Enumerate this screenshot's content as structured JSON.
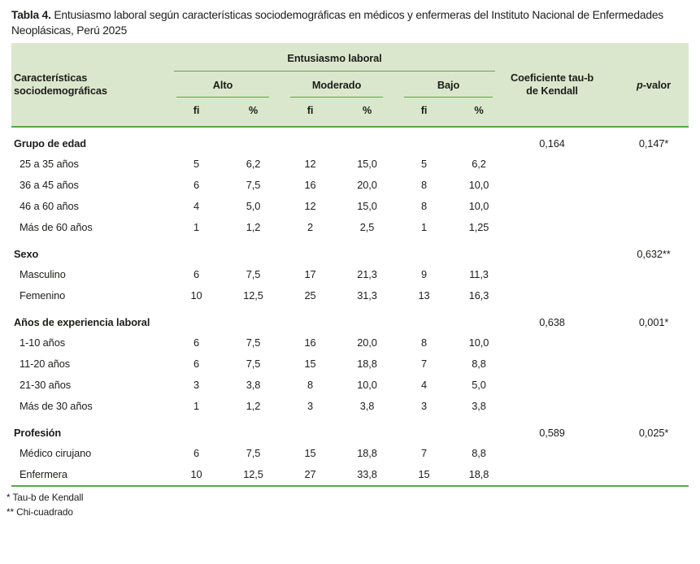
{
  "title": {
    "label": "Tabla 4.",
    "text": "Entusiasmo laboral según características sociodemográficas en médicos y enfermeras del Instituto Nacional de Enfermedades Neoplásicas, Perú 2025"
  },
  "header": {
    "characteristics": "Características sociodemográficas",
    "group": "Entusiasmo laboral",
    "subgroups": [
      "Alto",
      "Moderado",
      "Bajo"
    ],
    "fi_label": "fi",
    "pct_label": "%",
    "taub": "Coeficiente tau-b de Kendall",
    "p_italic": "p",
    "p_rest": "-valor"
  },
  "sections": [
    {
      "name": "Grupo de edad",
      "taub": "0,164",
      "pvalor": "0,147*",
      "rows": [
        {
          "label": "25 a 35 años",
          "values": [
            "5",
            "6,2",
            "12",
            "15,0",
            "5",
            "6,2"
          ]
        },
        {
          "label": "36 a 45 años",
          "values": [
            "6",
            "7,5",
            "16",
            "20,0",
            "8",
            "10,0"
          ]
        },
        {
          "label": "46 a 60 años",
          "values": [
            "4",
            "5,0",
            "12",
            "15,0",
            "8",
            "10,0"
          ]
        },
        {
          "label": "Más de 60 años",
          "values": [
            "1",
            "1,2",
            "2",
            "2,5",
            "1",
            "1,25"
          ]
        }
      ]
    },
    {
      "name": "Sexo",
      "taub": "",
      "pvalor": "0,632**",
      "rows": [
        {
          "label": "Masculino",
          "values": [
            "6",
            "7,5",
            "17",
            "21,3",
            "9",
            "11,3"
          ]
        },
        {
          "label": "Femenino",
          "values": [
            "10",
            "12,5",
            "25",
            "31,3",
            "13",
            "16,3"
          ]
        }
      ]
    },
    {
      "name": "Años de experiencia laboral",
      "taub": "0,638",
      "pvalor": "0,001*",
      "rows": [
        {
          "label": "1-10 años",
          "values": [
            "6",
            "7,5",
            "16",
            "20,0",
            "8",
            "10,0"
          ]
        },
        {
          "label": "11-20 años",
          "values": [
            "6",
            "7,5",
            "15",
            "18,8",
            "7",
            "8,8"
          ]
        },
        {
          "label": "21-30 años",
          "values": [
            "3",
            "3,8",
            "8",
            "10,0",
            "4",
            "5,0"
          ]
        },
        {
          "label": "Más de 30 años",
          "values": [
            "1",
            "1,2",
            "3",
            "3,8",
            "3",
            "3,8"
          ]
        }
      ]
    },
    {
      "name": "Profesión",
      "taub": "0,589",
      "pvalor": "0,025*",
      "rows": [
        {
          "label": "Médico cirujano",
          "values": [
            "6",
            "7,5",
            "15",
            "18,8",
            "7",
            "8,8"
          ]
        },
        {
          "label": "Enfermera",
          "values": [
            "10",
            "12,5",
            "27",
            "33,8",
            "15",
            "18,8"
          ]
        }
      ]
    }
  ],
  "footnotes": [
    "* Tau-b de Kendall",
    "** Chi-cuadrado"
  ],
  "colors": {
    "header_bg": "#dbe7cc",
    "line_green": "#57a845",
    "text": "#1d1d1b"
  }
}
